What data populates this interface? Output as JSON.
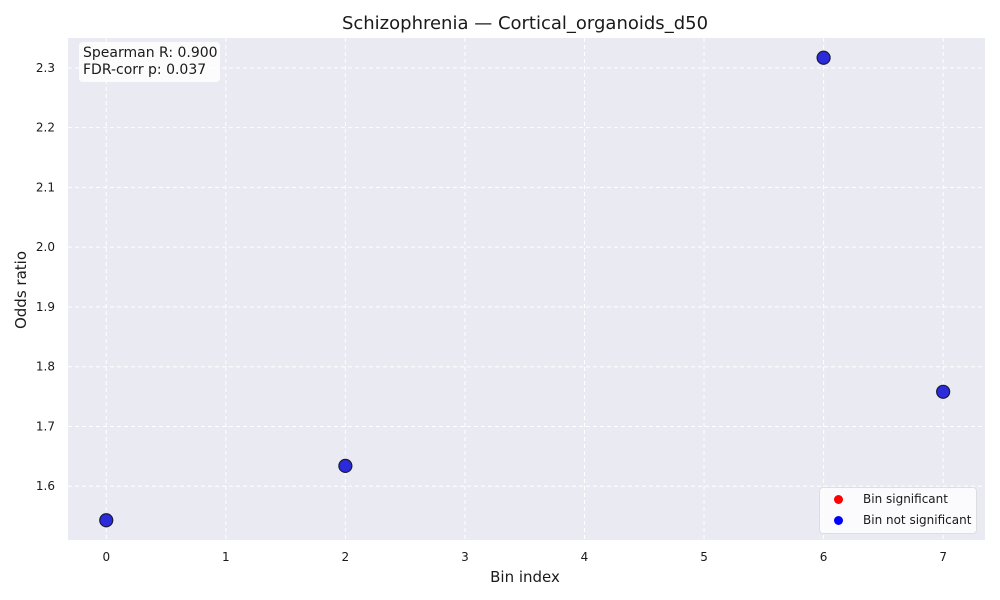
{
  "chart_data": {
    "type": "scatter",
    "title": "Schizophrenia — Cortical_organoids_d50",
    "xlabel": "Bin index",
    "ylabel": "Odds ratio",
    "xlim": [
      -0.32,
      7.35
    ],
    "ylim": [
      1.51,
      2.35
    ],
    "x_ticks": [
      0,
      1,
      2,
      3,
      4,
      5,
      6,
      7
    ],
    "y_ticks": [
      1.6,
      1.7,
      1.8,
      1.9,
      2.0,
      2.1,
      2.2,
      2.3
    ],
    "grid": true,
    "legend_position": "lower-right",
    "series": [
      {
        "name": "Bin significant",
        "color": "#ff0000",
        "points": []
      },
      {
        "name": "Bin not significant",
        "color": "#0000ff",
        "points": [
          {
            "x": 0,
            "y": 1.543
          },
          {
            "x": 2,
            "y": 1.634
          },
          {
            "x": 6,
            "y": 2.317
          },
          {
            "x": 7,
            "y": 1.758
          }
        ]
      }
    ],
    "annotation": {
      "line1": "Spearman R: 0.900",
      "line2": "FDR-corr p: 0.037"
    }
  },
  "colors": {
    "plot_bg": "#eaeaf2",
    "grid": "#ffffff",
    "marker_fill": "#2b2bdc",
    "marker_edge": "#1a1a3a"
  }
}
